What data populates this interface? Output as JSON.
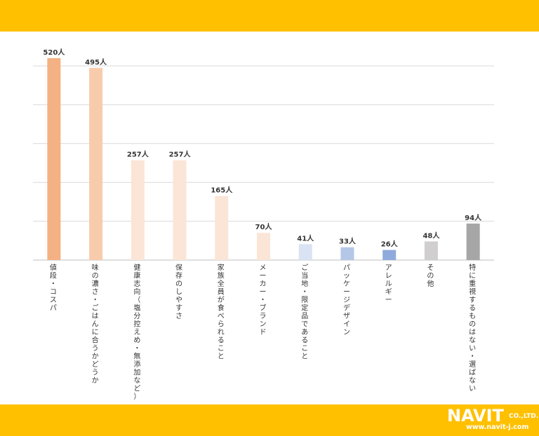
{
  "chart_data": {
    "type": "bar",
    "orientation": "vertical",
    "categories": [
      "値段・コスパ",
      "味の濃さ・ごはんに合うかどうか",
      "健康志向（塩分控えめ・無添加など）",
      "保存のしやすさ",
      "家族全員が食べられること",
      "メーカー・ブランド",
      "ご当地・限定品であること",
      "パッケージデザイン",
      "アレルギー",
      "その他",
      "特に重視するものはない・選ばない"
    ],
    "values": [
      520,
      495,
      257,
      257,
      165,
      70,
      41,
      33,
      26,
      48,
      94
    ],
    "value_labels": [
      "520人",
      "495人",
      "257人",
      "257人",
      "165人",
      "70人",
      "41人",
      "33人",
      "26人",
      "48人",
      "94人"
    ],
    "colors": [
      "#F4B183",
      "#F8CBAD",
      "#FBE5D6",
      "#FBE5D6",
      "#FBE5D6",
      "#FBE5D6",
      "#DAE3F3",
      "#B4C7E7",
      "#8FAADC",
      "#D0CECE",
      "#A6A6A6"
    ],
    "ylim": [
      0,
      500
    ],
    "grid": true,
    "title": "",
    "xlabel": "",
    "ylabel": ""
  },
  "logo": {
    "brand": "NAVIT",
    "suffix": "CO.,LTD.",
    "url": "www.navit-j.com"
  }
}
